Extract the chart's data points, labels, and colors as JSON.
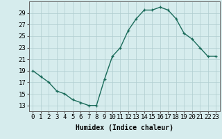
{
  "x": [
    0,
    1,
    2,
    3,
    4,
    5,
    6,
    7,
    8,
    9,
    10,
    11,
    12,
    13,
    14,
    15,
    16,
    17,
    18,
    19,
    20,
    21,
    22,
    23
  ],
  "y": [
    19,
    18,
    17,
    15.5,
    15,
    14,
    13.5,
    13,
    13,
    17.5,
    21.5,
    23,
    26,
    28,
    29.5,
    29.5,
    30,
    29.5,
    28,
    25.5,
    24.5,
    23,
    21.5,
    21.5
  ],
  "line_color": "#1a6b5a",
  "marker": "+",
  "bg_color": "#d6eced",
  "grid_color": "#b0cdd0",
  "xlabel": "Humidex (Indice chaleur)",
  "xlim": [
    -0.5,
    23.5
  ],
  "ylim": [
    12,
    31
  ],
  "yticks": [
    13,
    15,
    17,
    19,
    21,
    23,
    25,
    27,
    29
  ],
  "xticks": [
    0,
    1,
    2,
    3,
    4,
    5,
    6,
    7,
    8,
    9,
    10,
    11,
    12,
    13,
    14,
    15,
    16,
    17,
    18,
    19,
    20,
    21,
    22,
    23
  ],
  "xtick_labels": [
    "0",
    "1",
    "2",
    "3",
    "4",
    "5",
    "6",
    "7",
    "8",
    "9",
    "10",
    "11",
    "12",
    "13",
    "14",
    "15",
    "16",
    "17",
    "18",
    "19",
    "20",
    "21",
    "22",
    "23"
  ],
  "xlabel_fontsize": 7,
  "tick_fontsize": 6.5,
  "linewidth": 1.0,
  "markersize": 3.5,
  "markeredgewidth": 0.9
}
